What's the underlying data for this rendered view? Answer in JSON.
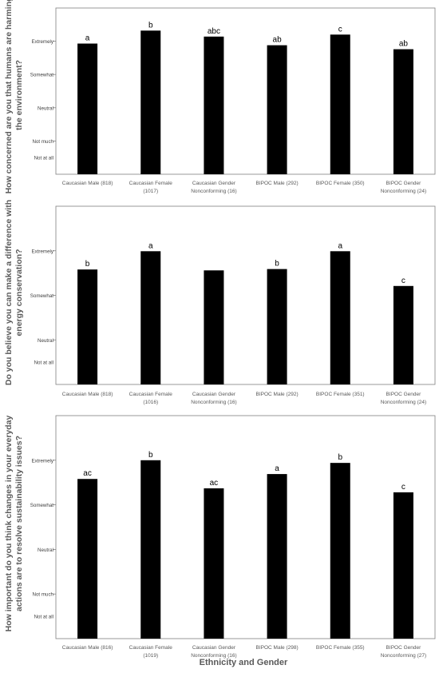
{
  "chart_data": [
    {
      "type": "bar",
      "ylabel": "How concerned are you that humans are harming the environment?",
      "ylabel_lines": [
        "How concerned are you that humans are harming",
        "the environment?"
      ],
      "y_levels": [
        "Not at all",
        "Not much",
        "Neutral",
        "Somewhat",
        "Extremely"
      ],
      "ylim": [
        0,
        5
      ],
      "grid": false,
      "categories": [
        [
          "Caucasian Male (818)"
        ],
        [
          "Caucasian Female",
          "(1017)"
        ],
        [
          "Caucasian Gender",
          "Nonconforming (16)"
        ],
        [
          "BIPOC Male (292)"
        ],
        [
          "BIPOC Female (350)"
        ],
        [
          "BIPOC Gender",
          "Nonconforming (24)"
        ]
      ],
      "values": [
        3.93,
        4.32,
        4.14,
        3.88,
        4.2,
        3.76
      ],
      "letters": [
        "a",
        "b",
        "abc",
        "ab",
        "c",
        "ab"
      ],
      "bar_color": "#000000"
    },
    {
      "type": "bar",
      "ylabel": "Do you believe you can make a difference with energy conservation?",
      "ylabel_lines": [
        "Do you believe you can make a difference with",
        "energy conservation?"
      ],
      "y_levels": [
        "Not at all",
        "Neutral",
        "Somewhat",
        "Extremely"
      ],
      "ylim": [
        1,
        5
      ],
      "grid": false,
      "categories": [
        [
          "Caucasian Male (818)"
        ],
        [
          "Caucasian Female",
          "(1016)"
        ],
        [
          "Caucasian Gender",
          "Nonconforming (16)"
        ],
        [
          "BIPOC Male (292)"
        ],
        [
          "BIPOC Female (351)"
        ],
        [
          "BIPOC Gender",
          "Nonconforming (24)"
        ]
      ],
      "values": [
        3.58,
        3.99,
        3.56,
        3.59,
        3.99,
        3.21
      ],
      "letters": [
        "b",
        "a",
        "",
        "b",
        "a",
        "c"
      ],
      "bar_color": "#000000"
    },
    {
      "type": "bar",
      "ylabel": "How important do you think changes in your everyday actions are to resolve sustainability issues?",
      "ylabel_lines": [
        "How important do you think changes in your everyday",
        "actions are to resolve sustainability issues?"
      ],
      "y_levels": [
        "Not at all",
        "Not much",
        "Neutral",
        "Somewhat",
        "Extremely"
      ],
      "ylim": [
        0,
        5
      ],
      "xlabel": "Ethnicity and Gender",
      "grid": false,
      "categories": [
        [
          "Caucasian Male (816)"
        ],
        [
          "Caucasian Female",
          "(1019)"
        ],
        [
          "Caucasian Gender",
          "Nonconforming (16)"
        ],
        [
          "BIPOC Male (298)"
        ],
        [
          "BIPOC Female (355)"
        ],
        [
          "BIPOC Gender",
          "Nonconforming (27)"
        ]
      ],
      "values": [
        3.58,
        4.0,
        3.37,
        3.69,
        3.94,
        3.28
      ],
      "letters": [
        "ac",
        "b",
        "ac",
        "a",
        "b",
        "c"
      ],
      "bar_color": "#000000"
    }
  ]
}
